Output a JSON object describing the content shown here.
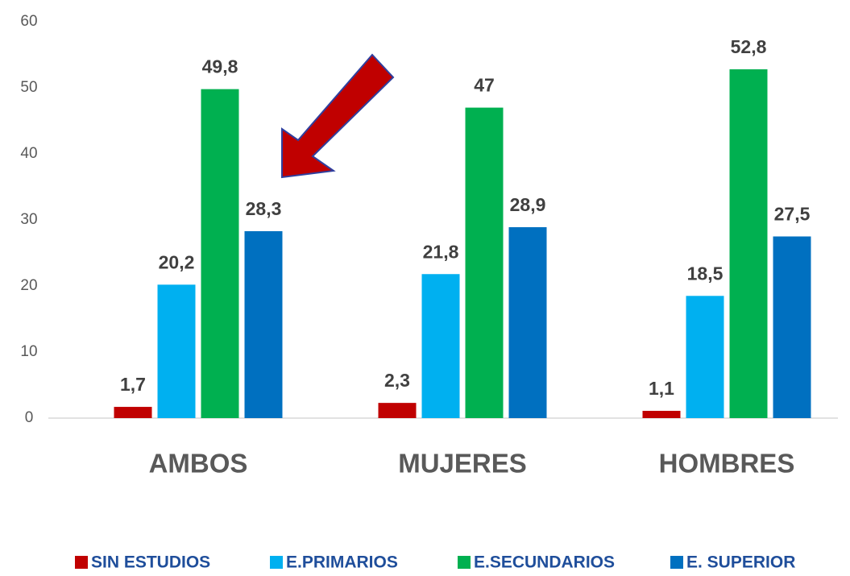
{
  "chart_data": {
    "type": "bar",
    "categories": [
      "AMBOS",
      "MUJERES",
      "HOMBRES"
    ],
    "series": [
      {
        "name": "SIN ESTUDIOS",
        "color": "#c00000",
        "values": [
          1.7,
          2.3,
          1.1
        ],
        "value_labels": [
          "1,7",
          "2,3",
          "1,1"
        ]
      },
      {
        "name": "E.PRIMARIOS",
        "color": "#00b0f0",
        "values": [
          20.2,
          21.8,
          18.5
        ],
        "value_labels": [
          "20,2",
          "21,8",
          "18,5"
        ]
      },
      {
        "name": "E.SECUNDARIOS",
        "color": "#00b050",
        "values": [
          49.8,
          47,
          52.8
        ],
        "value_labels": [
          "49,8",
          "47",
          "52,8"
        ]
      },
      {
        "name": "E. SUPERIOR",
        "color": "#0070c0",
        "values": [
          28.3,
          28.9,
          27.5
        ],
        "value_labels": [
          "28,3",
          "28,9",
          "27,5"
        ]
      }
    ],
    "ylim": [
      0,
      60
    ],
    "yticks": [
      0,
      10,
      20,
      30,
      40,
      50,
      60
    ],
    "grid": false,
    "legend": "bottom"
  }
}
